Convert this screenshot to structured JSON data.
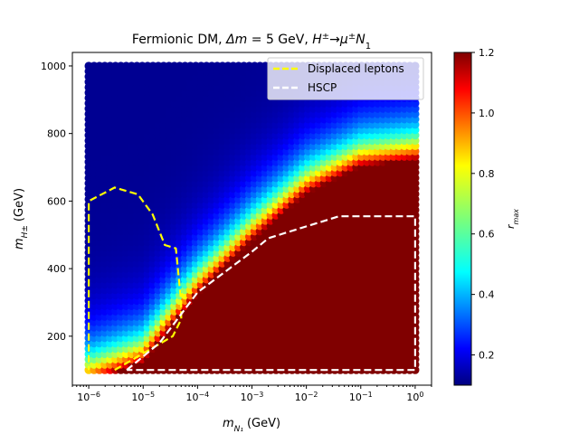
{
  "chart_data": {
    "type": "scatter",
    "title": "Fermionic DM, Δm = 5 GeV, H±→μ±N₁",
    "title_parts": {
      "prefix": "Fermionic DM, ",
      "dm_sym": "Δm",
      "dm_val": " = 5 GeV, ",
      "h_sym": "H",
      "pm": "±",
      "arrow": "→",
      "mu": "μ",
      "n_sym": "N",
      "n_sub": "1"
    },
    "xlabel": {
      "m": "m",
      "sub": "N₁",
      "unit": "(GeV)"
    },
    "ylabel": {
      "m": "m",
      "sub": "H±",
      "unit": "(GeV)"
    },
    "x_scale": "log",
    "xlim": [
      5e-07,
      2
    ],
    "ylim": [
      55,
      1040
    ],
    "x_ticks": [
      {
        "value": 1e-06,
        "base": "10",
        "exp": "−6"
      },
      {
        "value": 1e-05,
        "base": "10",
        "exp": "−5"
      },
      {
        "value": 0.0001,
        "base": "10",
        "exp": "−4"
      },
      {
        "value": 0.001,
        "base": "10",
        "exp": "−3"
      },
      {
        "value": 0.01,
        "base": "10",
        "exp": "−2"
      },
      {
        "value": 0.1,
        "base": "10",
        "exp": "−1"
      },
      {
        "value": 1,
        "base": "10",
        "exp": "0"
      }
    ],
    "y_ticks": [
      200,
      400,
      600,
      800,
      1000
    ],
    "grid": false,
    "legend_position": "top-right",
    "colorbar": {
      "label_main": "r",
      "label_sub": "max",
      "range": [
        0.1,
        1.2
      ],
      "ticks": [
        "0.2",
        "0.4",
        "0.6",
        "0.8",
        "1.0",
        "1.2"
      ],
      "tick_values": [
        0.2,
        0.4,
        0.6,
        0.8,
        1.0,
        1.2
      ],
      "colormap": "jet"
    },
    "scan": {
      "x_range": [
        1e-06,
        1
      ],
      "y_range": [
        100,
        1000
      ],
      "boundary_x": [
        1e-06,
        1e-05,
        0.0001,
        0.001,
        0.01,
        0.1,
        1
      ],
      "boundary_y": [
        60,
        120,
        320,
        480,
        620,
        700,
        720
      ]
    },
    "series": [
      {
        "name": "Displaced leptons",
        "color": "#ffff00",
        "dash": true,
        "x": [
          3e-06,
          3.5e-05,
          5e-05,
          5e-05,
          4e-05,
          2.5e-05,
          1.5e-05,
          8e-06,
          3e-06,
          1e-06,
          1e-06,
          1e-06
        ],
        "y": [
          100,
          200,
          250,
          300,
          460,
          470,
          560,
          620,
          640,
          600,
          400,
          100
        ]
      },
      {
        "name": "HSCP",
        "color": "#ffffff",
        "dash": true,
        "x": [
          5e-06,
          2e-05,
          0.0001,
          0.001,
          0.002,
          0.005,
          0.04,
          1,
          1,
          5e-06
        ],
        "y": [
          100,
          180,
          330,
          450,
          490,
          510,
          555,
          555,
          100,
          100
        ]
      }
    ]
  }
}
